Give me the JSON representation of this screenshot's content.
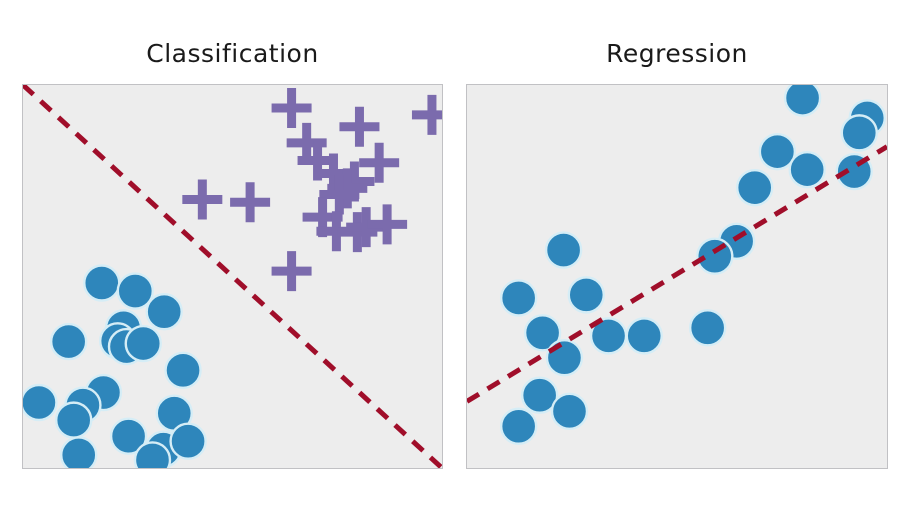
{
  "canvas": {
    "background": "#ffffff",
    "title_color": "#1a1a1a"
  },
  "chart_data": [
    {
      "type": "scatter",
      "title": "Classification",
      "xlabel": "",
      "ylabel": "",
      "xlim": [
        0,
        1
      ],
      "ylim": [
        0,
        1
      ],
      "axes_visible": false,
      "grid": false,
      "legend": "none",
      "plot_bg": "#ededed",
      "border_color": "#c1c1c4",
      "series": [
        {
          "name": "class-blue-circles",
          "marker": "circle",
          "color": "#2e86bb",
          "edge_color": "#d5edf6",
          "edge_width": 2.4,
          "size": 35,
          "points": [
            [
              0.188,
              0.483
            ],
            [
              0.268,
              0.462
            ],
            [
              0.337,
              0.408
            ],
            [
              0.109,
              0.33
            ],
            [
              0.24,
              0.366
            ],
            [
              0.226,
              0.332
            ],
            [
              0.247,
              0.317
            ],
            [
              0.287,
              0.325
            ],
            [
              0.382,
              0.255
            ],
            [
              0.038,
              0.171
            ],
            [
              0.192,
              0.197
            ],
            [
              0.143,
              0.164
            ],
            [
              0.121,
              0.125
            ],
            [
              0.361,
              0.143
            ],
            [
              0.252,
              0.083
            ],
            [
              0.335,
              0.049
            ],
            [
              0.394,
              0.07
            ],
            [
              0.133,
              0.034
            ],
            [
              0.309,
              0.021
            ]
          ]
        },
        {
          "name": "class-purple-plusses",
          "marker": "plus",
          "color": "#7b6bad",
          "stroke_width": 9,
          "size": 40,
          "points": [
            [
              0.641,
              0.94
            ],
            [
              0.803,
              0.891
            ],
            [
              0.976,
              0.922
            ],
            [
              0.677,
              0.849
            ],
            [
              0.703,
              0.803
            ],
            [
              0.85,
              0.797
            ],
            [
              0.741,
              0.769
            ],
            [
              0.791,
              0.748
            ],
            [
              0.774,
              0.73
            ],
            [
              0.755,
              0.714
            ],
            [
              0.428,
              0.701
            ],
            [
              0.542,
              0.694
            ],
            [
              0.715,
              0.655
            ],
            [
              0.748,
              0.618
            ],
            [
              0.798,
              0.616
            ],
            [
              0.819,
              0.629
            ],
            [
              0.869,
              0.636
            ],
            [
              0.641,
              0.514
            ]
          ]
        }
      ],
      "boundary_line": {
        "name": "decision-boundary-line",
        "style": "dashed",
        "color": "#a00e2a",
        "width": 5,
        "dash": [
          14,
          10
        ],
        "from": [
          0,
          1
        ],
        "to": [
          1,
          0
        ]
      }
    },
    {
      "type": "scatter",
      "title": "Regression",
      "xlabel": "",
      "ylabel": "",
      "xlim": [
        0,
        1
      ],
      "ylim": [
        0,
        1
      ],
      "axes_visible": false,
      "grid": false,
      "legend": "none",
      "plot_bg": "#ededed",
      "border_color": "#c1c1c4",
      "series": [
        {
          "name": "regression-blue-circles",
          "marker": "circle",
          "color": "#2e86bb",
          "edge_color": "#d5edf6",
          "edge_width": 2.4,
          "size": 35,
          "points": [
            [
              0.799,
              0.966
            ],
            [
              0.953,
              0.914
            ],
            [
              0.934,
              0.875
            ],
            [
              0.739,
              0.826
            ],
            [
              0.81,
              0.779
            ],
            [
              0.922,
              0.774
            ],
            [
              0.685,
              0.732
            ],
            [
              0.642,
              0.592
            ],
            [
              0.59,
              0.553
            ],
            [
              0.23,
              0.569
            ],
            [
              0.123,
              0.444
            ],
            [
              0.284,
              0.452
            ],
            [
              0.18,
              0.353
            ],
            [
              0.337,
              0.345
            ],
            [
              0.422,
              0.345
            ],
            [
              0.573,
              0.366
            ],
            [
              0.232,
              0.288
            ],
            [
              0.173,
              0.19
            ],
            [
              0.244,
              0.148
            ],
            [
              0.123,
              0.109
            ]
          ]
        }
      ],
      "boundary_line": {
        "name": "regression-trend-line",
        "style": "dashed",
        "color": "#a00e2a",
        "width": 5,
        "dash": [
          14,
          10
        ],
        "from": [
          0,
          0.174
        ],
        "to": [
          1,
          0.839
        ]
      }
    }
  ]
}
